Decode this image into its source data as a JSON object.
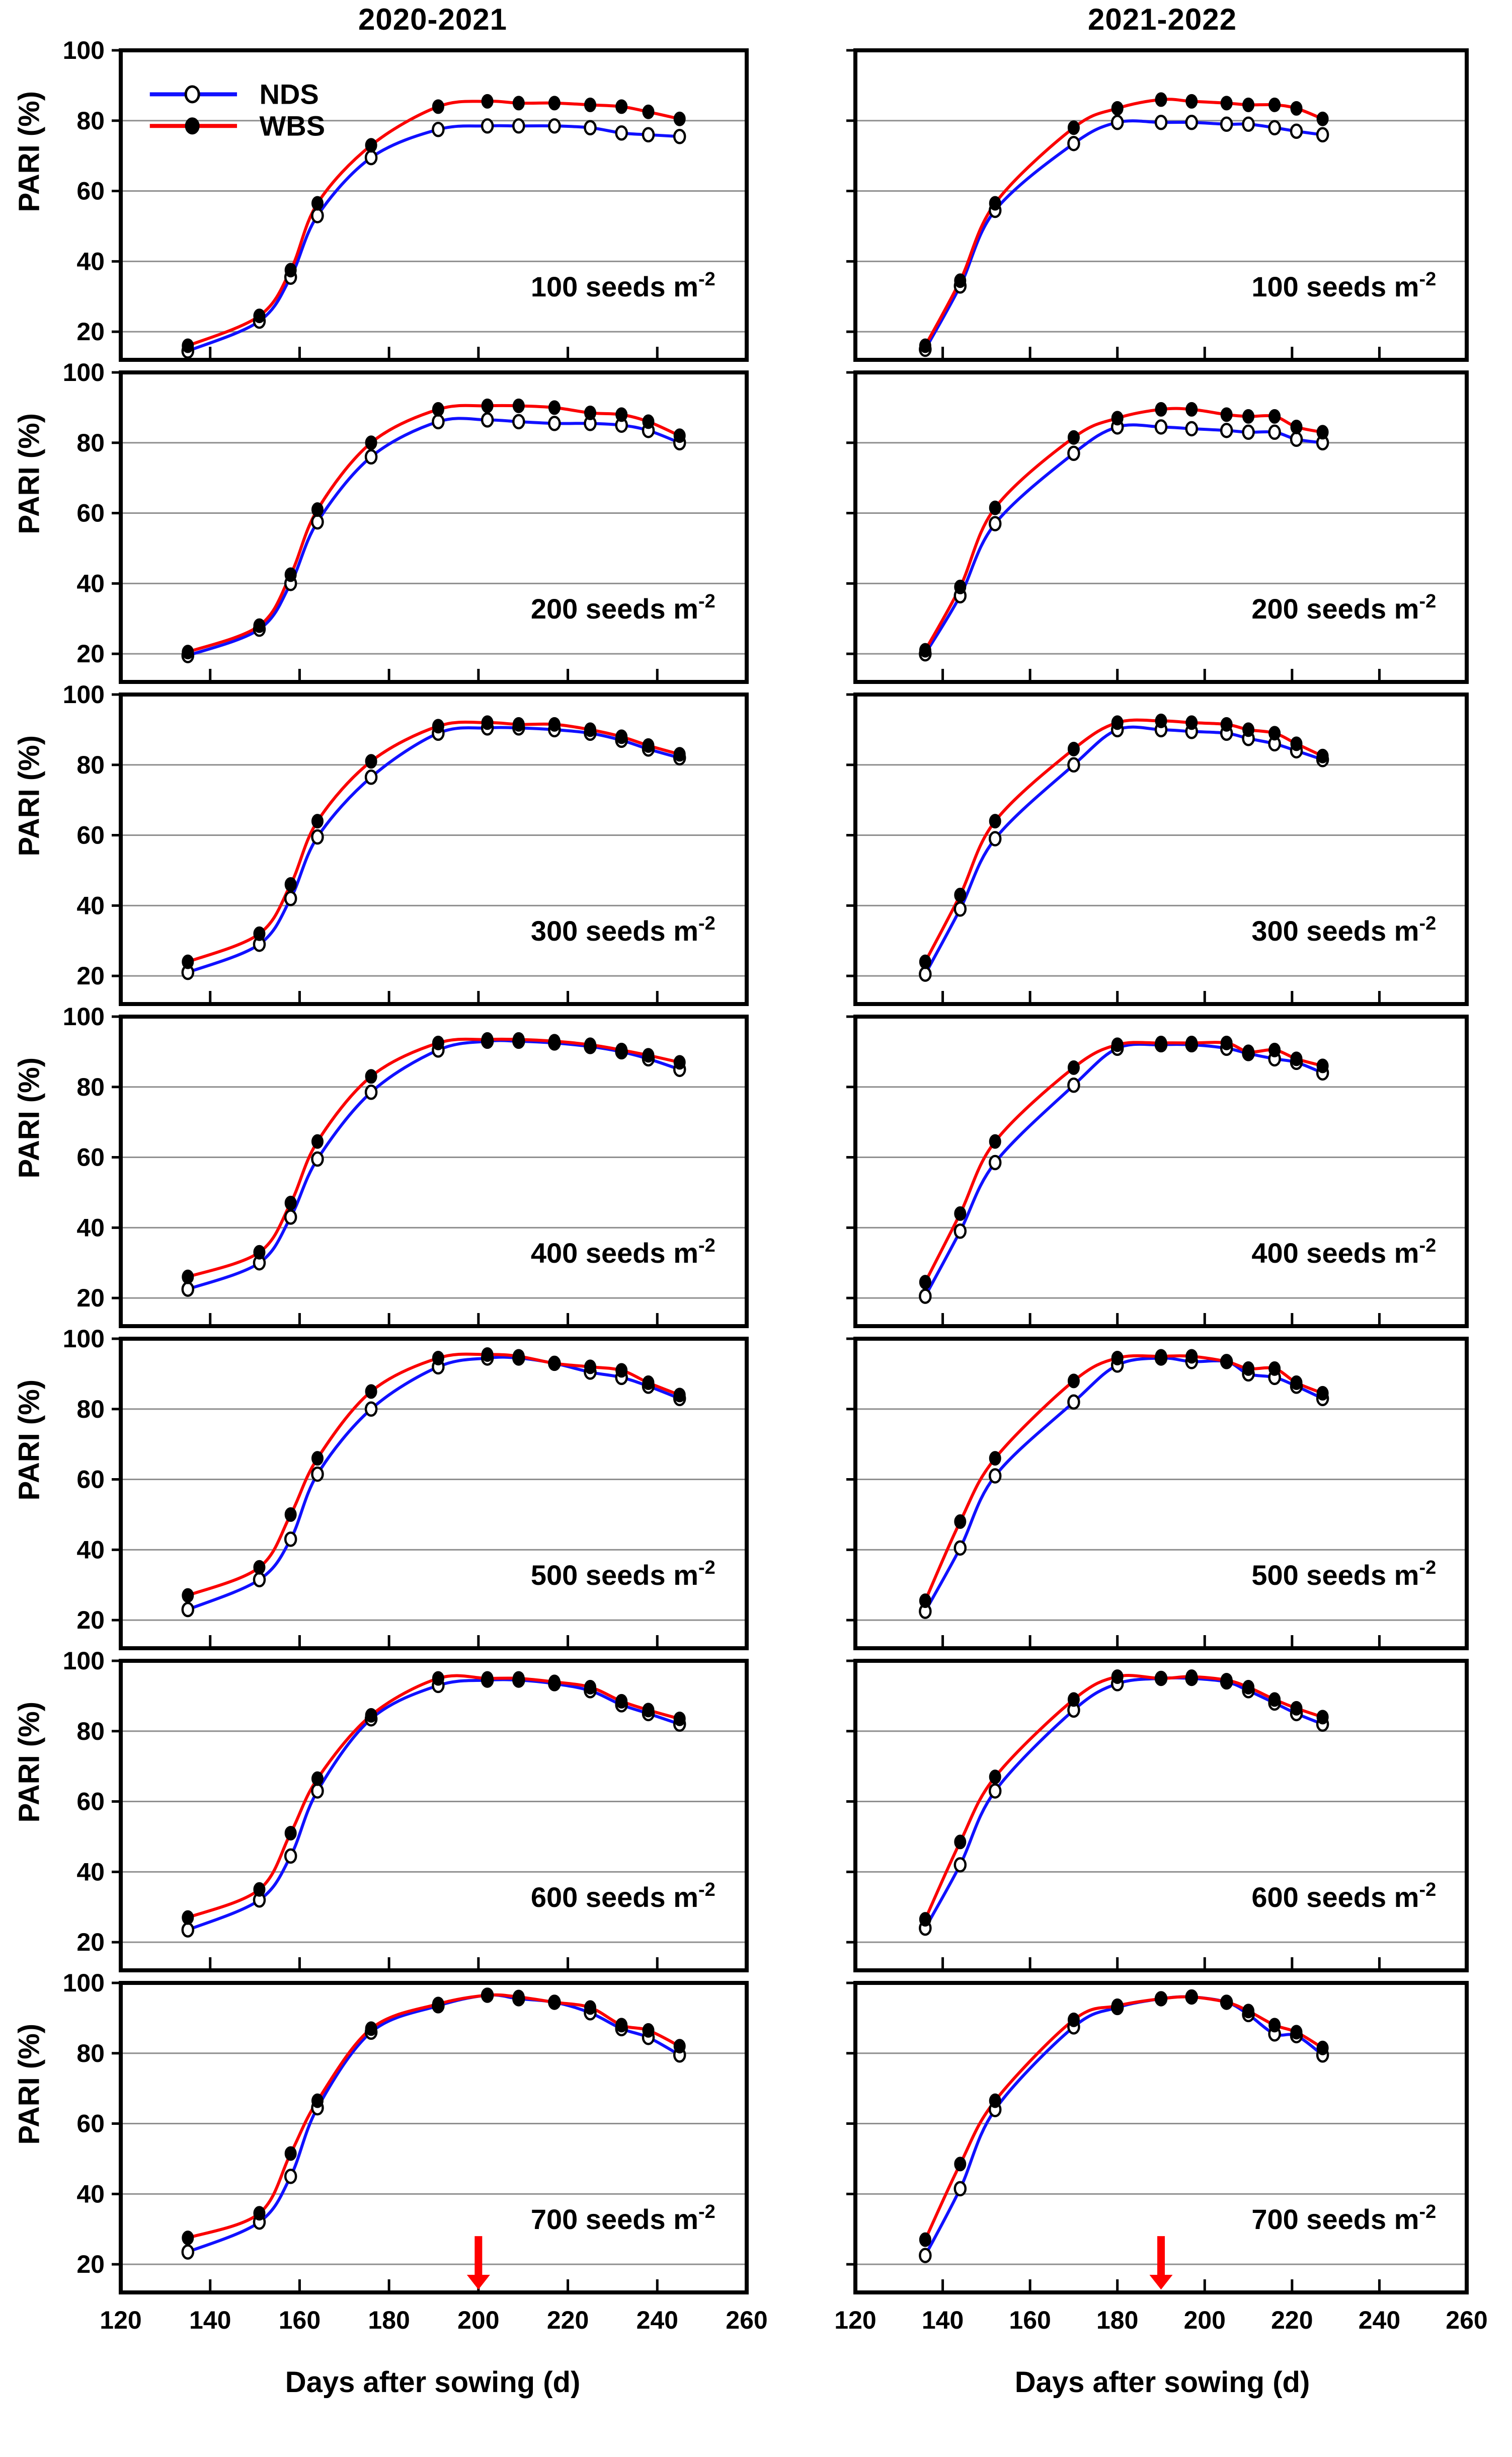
{
  "chart_data": {
    "type": "line",
    "ylabel": "PARI (%)",
    "axes": {
      "xlim": [
        120,
        260
      ],
      "ylim": [
        12,
        100
      ],
      "x_ticks": [
        120,
        140,
        160,
        180,
        200,
        220,
        240,
        260
      ],
      "y_ticks": [
        20,
        40,
        60,
        80,
        100
      ],
      "grid_values": [
        20,
        40,
        60,
        80
      ],
      "grid_on": true
    },
    "legend": {
      "position": "top-left-first-panel",
      "items": [
        {
          "label": "NDS",
          "color": "#1010ff",
          "marker": "open-circle"
        },
        {
          "label": "WBS",
          "color": "#fa0000",
          "marker": "filled-circle"
        }
      ]
    },
    "colors": {
      "nds": "#1010ff",
      "wbs": "#fa0000",
      "marker_fill_nds": "#ffffff",
      "marker_fill_wbs": "#000000",
      "grid": "#8f8f8f",
      "frame": "#000000",
      "arrow": "#ff0000"
    },
    "columns": [
      {
        "title": "2020-2021",
        "xlabel": "Days after sowing (d)",
        "days": [
          135,
          151,
          158,
          164,
          176,
          191,
          202,
          209,
          217,
          225,
          232,
          238,
          245
        ],
        "arrow_day": 200
      },
      {
        "title": "2021-2022",
        "xlabel": "Days after sowing (d)",
        "days": [
          136,
          144,
          152,
          170,
          180,
          190,
          197,
          205,
          210,
          216,
          221,
          227
        ],
        "arrow_day": 190
      }
    ],
    "panels": [
      {
        "row": 0,
        "col": 0,
        "label_main": "100 seeds m",
        "label_exp": "-2",
        "WBS": [
          16,
          24.5,
          37.5,
          56.5,
          73,
          84,
          85.5,
          85,
          85,
          84.5,
          84,
          82.5,
          80.5
        ],
        "NDS": [
          14.5,
          23,
          35.5,
          53,
          69.5,
          77.5,
          78.5,
          78.5,
          78.5,
          78,
          76.5,
          76,
          75.5
        ]
      },
      {
        "row": 0,
        "col": 1,
        "label_main": "100 seeds m",
        "label_exp": "-2",
        "WBS": [
          16,
          34.5,
          56.5,
          78,
          83.5,
          86,
          85.5,
          85,
          84.5,
          84.5,
          83.5,
          80.5
        ],
        "NDS": [
          15,
          33,
          54.5,
          73.5,
          79.5,
          79.5,
          79.5,
          79,
          79,
          78,
          77,
          76
        ]
      },
      {
        "row": 1,
        "col": 0,
        "label_main": "200 seeds m",
        "label_exp": "-2",
        "WBS": [
          20.5,
          28,
          42.5,
          61,
          80,
          89.5,
          90.5,
          90.5,
          90,
          88.5,
          88,
          86,
          82
        ],
        "NDS": [
          19.5,
          27,
          40,
          57.5,
          76,
          86,
          86.5,
          86,
          85.5,
          85.5,
          85,
          83.5,
          80
        ]
      },
      {
        "row": 1,
        "col": 1,
        "label_main": "200 seeds m",
        "label_exp": "-2",
        "WBS": [
          21,
          39,
          61.5,
          81.5,
          87,
          89.5,
          89.5,
          88,
          87.5,
          87.5,
          84.5,
          83
        ],
        "NDS": [
          20,
          36.5,
          57,
          77,
          84.5,
          84.5,
          84,
          83.5,
          83,
          83,
          81,
          80
        ]
      },
      {
        "row": 2,
        "col": 0,
        "label_main": "300 seeds m",
        "label_exp": "-2",
        "WBS": [
          24,
          32,
          46,
          64,
          81,
          91,
          92,
          91.5,
          91.5,
          90,
          88,
          85.5,
          83
        ],
        "NDS": [
          21,
          29,
          42,
          59.5,
          76.5,
          89,
          90.5,
          90.5,
          90,
          89,
          87,
          84.5,
          82
        ]
      },
      {
        "row": 2,
        "col": 1,
        "label_main": "300 seeds m",
        "label_exp": "-2",
        "WBS": [
          24,
          43,
          64,
          84.5,
          92,
          92.5,
          92,
          91.5,
          90,
          89,
          86,
          82.5
        ],
        "NDS": [
          20.5,
          39,
          59,
          80,
          90,
          90,
          89.5,
          89,
          87.5,
          86,
          84,
          81.5
        ]
      },
      {
        "row": 3,
        "col": 0,
        "label_main": "400 seeds m",
        "label_exp": "-2",
        "WBS": [
          26,
          33,
          47,
          64.5,
          83,
          92.5,
          93.5,
          93.5,
          93,
          92,
          90.5,
          89,
          87
        ],
        "NDS": [
          22.5,
          30,
          43,
          59.5,
          78.5,
          90.5,
          93,
          93,
          92.5,
          91.5,
          90,
          88,
          85
        ]
      },
      {
        "row": 3,
        "col": 1,
        "label_main": "400 seeds m",
        "label_exp": "-2",
        "WBS": [
          24.5,
          44,
          64.5,
          85.5,
          92,
          92.5,
          92.5,
          92.5,
          90,
          90.5,
          88,
          86
        ],
        "NDS": [
          20.5,
          39,
          58.5,
          80.5,
          91,
          92,
          92,
          91,
          89.5,
          88,
          87,
          84
        ]
      },
      {
        "row": 4,
        "col": 0,
        "label_main": "500 seeds m",
        "label_exp": "-2",
        "WBS": [
          27,
          35,
          50,
          66,
          85,
          94.5,
          95.5,
          95,
          93,
          92,
          91,
          87.5,
          84
        ],
        "NDS": [
          23,
          31.5,
          43,
          61.5,
          80,
          92,
          94.5,
          94.5,
          93,
          90.5,
          89,
          86.5,
          83
        ]
      },
      {
        "row": 4,
        "col": 1,
        "label_main": "500 seeds m",
        "label_exp": "-2",
        "WBS": [
          25.5,
          48,
          66,
          88,
          94.5,
          95,
          95,
          93.5,
          91.5,
          91.5,
          87.5,
          84.5
        ],
        "NDS": [
          22.5,
          40.5,
          61,
          82,
          92.5,
          94.5,
          93.5,
          93.5,
          90,
          89,
          86.5,
          83
        ]
      },
      {
        "row": 5,
        "col": 0,
        "label_main": "600 seeds m",
        "label_exp": "-2",
        "WBS": [
          27,
          35,
          51,
          66.5,
          84.5,
          95,
          95,
          95,
          94,
          92.5,
          88.5,
          86,
          83.5
        ],
        "NDS": [
          23.5,
          32,
          44.5,
          63,
          83.5,
          93,
          94.5,
          94.5,
          93.5,
          91.5,
          87.5,
          85,
          82
        ]
      },
      {
        "row": 5,
        "col": 1,
        "label_main": "600 seeds m",
        "label_exp": "-2",
        "WBS": [
          26.5,
          48.5,
          67,
          89,
          95.5,
          95,
          95.5,
          94.5,
          92.5,
          89,
          86.5,
          84
        ],
        "NDS": [
          24,
          42,
          63,
          86,
          93.5,
          95,
          95,
          94,
          91.5,
          88,
          85,
          82
        ]
      },
      {
        "row": 6,
        "col": 0,
        "label_main": "700 seeds m",
        "label_exp": "-2",
        "arrow": true,
        "WBS": [
          27.5,
          34.5,
          51.5,
          66.5,
          87,
          94,
          96.5,
          96,
          94.5,
          93,
          88,
          86.5,
          82
        ],
        "NDS": [
          23.5,
          32,
          45,
          64.5,
          86,
          93.5,
          96.5,
          95.5,
          94.5,
          91.5,
          87,
          84.5,
          79.5
        ]
      },
      {
        "row": 6,
        "col": 1,
        "label_main": "700 seeds m",
        "label_exp": "-2",
        "arrow": true,
        "WBS": [
          27,
          48.5,
          66.5,
          89.5,
          93.5,
          95.5,
          96,
          94.5,
          92,
          88,
          86,
          81.5
        ],
        "NDS": [
          22.5,
          41.5,
          64,
          87.5,
          93,
          95.5,
          96,
          94.5,
          91,
          85.5,
          85,
          79.5
        ]
      }
    ]
  }
}
